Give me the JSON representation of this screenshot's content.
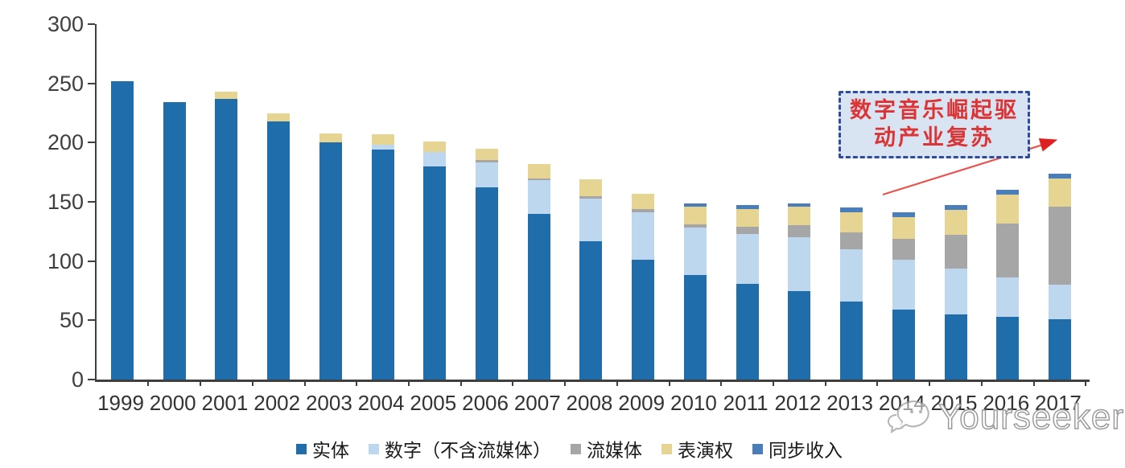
{
  "chart_data": {
    "type": "bar",
    "stacked": true,
    "title": "",
    "xlabel": "",
    "ylabel": "",
    "ylim": [
      0,
      300
    ],
    "yticks": [
      300,
      250,
      200,
      150,
      100,
      50,
      0
    ],
    "grid": false,
    "legend_position": "bottom",
    "categories": [
      "1999",
      "2000",
      "2001",
      "2002",
      "2003",
      "2004",
      "2005",
      "2006",
      "2007",
      "2008",
      "2009",
      "2010",
      "2011",
      "2012",
      "2013",
      "2014",
      "2015",
      "2016",
      "2017"
    ],
    "series": [
      {
        "name": "实体",
        "color": "#1f6dab",
        "values": [
          252,
          234,
          237,
          218,
          200,
          194,
          180,
          162,
          140,
          117,
          101,
          88,
          81,
          75,
          66,
          59,
          55,
          53,
          51
        ]
      },
      {
        "name": "数字（不含流媒体）",
        "color": "#bdd7ee",
        "values": [
          0,
          0,
          0,
          0,
          0,
          4,
          12,
          21,
          28,
          36,
          40,
          40,
          42,
          45,
          44,
          42,
          39,
          33,
          29
        ]
      },
      {
        "name": "流媒体",
        "color": "#a6a6a6",
        "values": [
          0,
          0,
          0,
          0,
          0,
          0,
          0,
          2,
          2,
          2,
          3,
          3,
          6,
          10,
          14,
          18,
          28,
          46,
          66
        ]
      },
      {
        "name": "表演权",
        "color": "#e6d493",
        "values": [
          0,
          0,
          6,
          7,
          8,
          9,
          9,
          10,
          12,
          14,
          13,
          15,
          15,
          16,
          17,
          18,
          21,
          24,
          24
        ]
      },
      {
        "name": "同步收入",
        "color": "#4a7ebb",
        "values": [
          0,
          0,
          0,
          0,
          0,
          0,
          0,
          0,
          0,
          0,
          0,
          3,
          3,
          3,
          4,
          4,
          4,
          4,
          4
        ]
      }
    ]
  },
  "annotation": {
    "line1": "数字音乐崛起驱",
    "line2": "动产业复苏",
    "border_color": "#2f4a9e",
    "fill_color": "#d9e4f3",
    "text_color": "#dc3434",
    "arrow_color": "#e8514c"
  },
  "watermark": {
    "text": "Yourseeker",
    "logo": "chat-bubbles-icon"
  },
  "axis": {
    "color": "#3f3f3f"
  }
}
